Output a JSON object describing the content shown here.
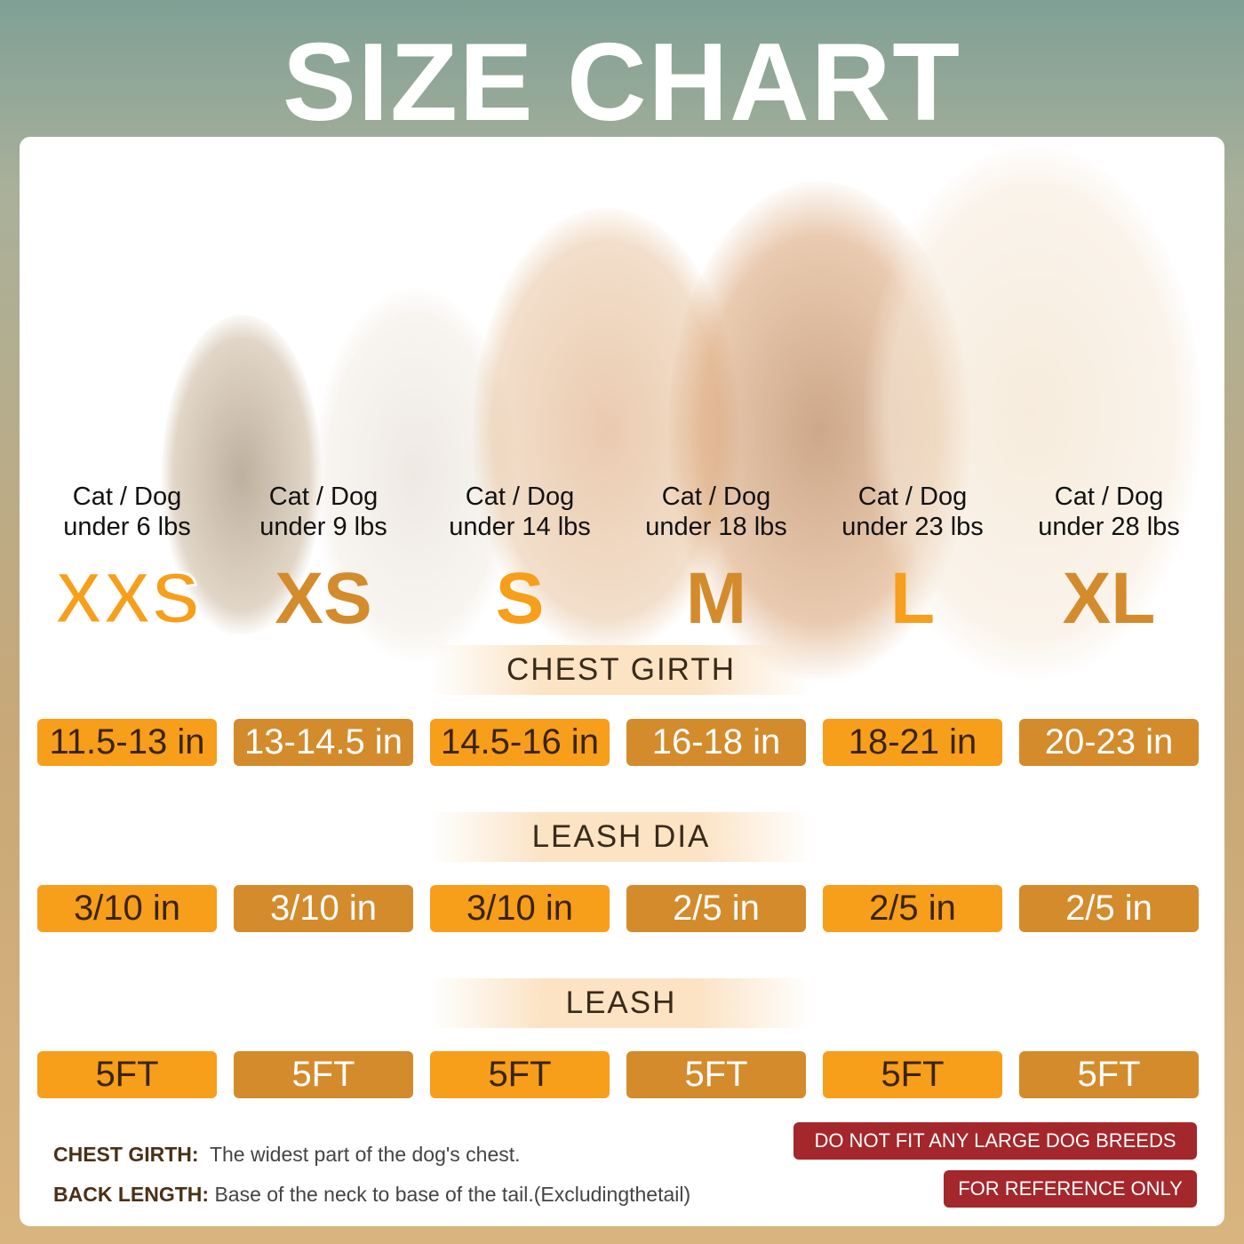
{
  "title": "SIZE CHART",
  "sizes": [
    {
      "label": "XXS",
      "weight_line1": "Cat / Dog",
      "weight_line2": "under 6 lbs",
      "chest": "11.5-13 in",
      "leash_dia": "3/10 in",
      "leash": "5FT"
    },
    {
      "label": "XS",
      "weight_line1": "Cat / Dog",
      "weight_line2": "under 9 lbs",
      "chest": "13-14.5 in",
      "leash_dia": "3/10 in",
      "leash": "5FT"
    },
    {
      "label": "S",
      "weight_line1": "Cat / Dog",
      "weight_line2": "under 14 lbs",
      "chest": "14.5-16 in",
      "leash_dia": "3/10 in",
      "leash": "5FT"
    },
    {
      "label": "M",
      "weight_line1": "Cat / Dog",
      "weight_line2": "under 18 lbs",
      "chest": "16-18 in",
      "leash_dia": "2/5 in",
      "leash": "5FT"
    },
    {
      "label": "L",
      "weight_line1": "Cat / Dog",
      "weight_line2": "under 23 lbs",
      "chest": "18-21 in",
      "leash_dia": "2/5 in",
      "leash": "5FT"
    },
    {
      "label": "XL",
      "weight_line1": "Cat / Dog",
      "weight_line2": "under 28 lbs",
      "chest": "20-23 in",
      "leash_dia": "2/5 in",
      "leash": "5FT"
    }
  ],
  "sections": {
    "chest": "CHEST GIRTH",
    "leash_dia": "LEASH DIA",
    "leash": "LEASH"
  },
  "notes": {
    "chest_label": "CHEST GIRTH:",
    "chest_text": "The widest part of the dog's chest.",
    "back_label": "BACK LENGTH:",
    "back_text": "Base of the neck to base of the tail.(Excludingthetail)"
  },
  "warnings": [
    "DO NOT FIT ANY LARGE DOG BREEDS",
    "FOR REFERENCE ONLY"
  ],
  "colors": {
    "orange": "#f79e1b",
    "tan": "#d38b2c",
    "red": "#a3272b"
  }
}
